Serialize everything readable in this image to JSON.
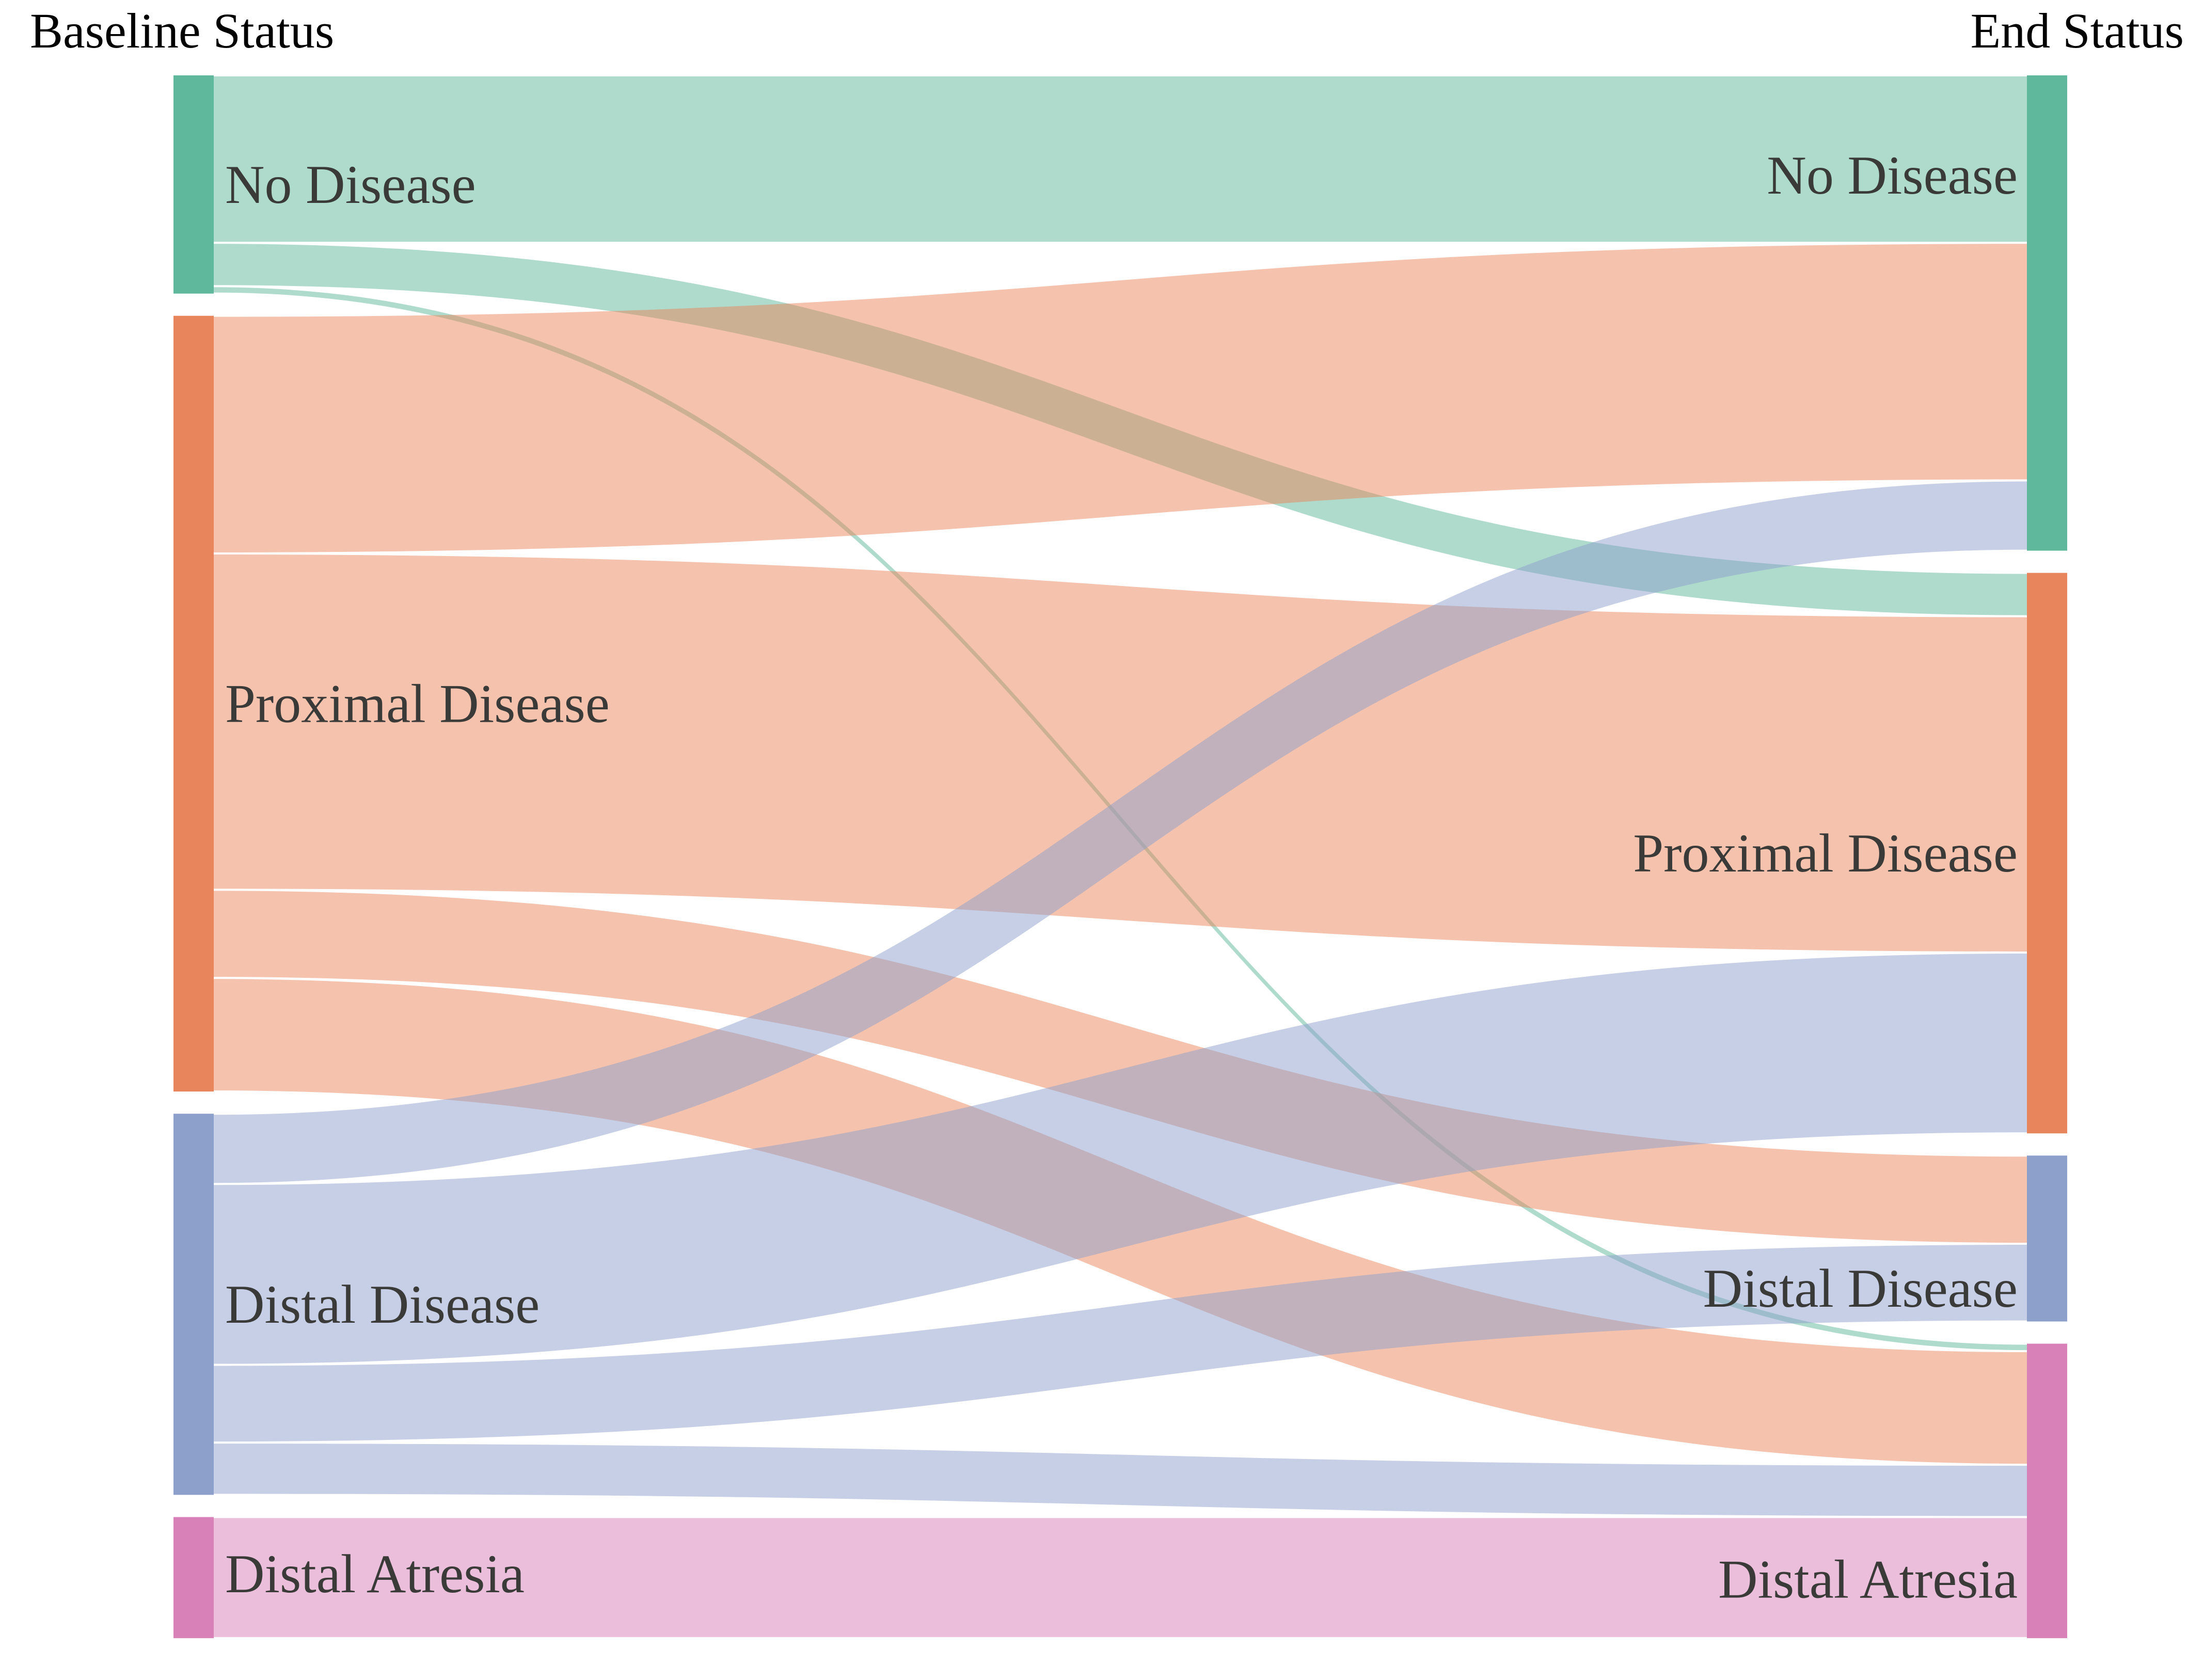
{
  "chart_data": {
    "type": "sankey",
    "columns": [
      {
        "id": "baseline",
        "title": "Baseline Status"
      },
      {
        "id": "end",
        "title": "End Status"
      }
    ],
    "nodes": [
      {
        "id": "no_disease",
        "label": "No Disease",
        "color": "#5fb89c"
      },
      {
        "id": "proximal_disease",
        "label": "Proximal Disease",
        "color": "#e9855c"
      },
      {
        "id": "distal_disease",
        "label": "Distal Disease",
        "color": "#8da0cc"
      },
      {
        "id": "distal_atresia",
        "label": "Distal Atresia",
        "color": "#d880b8"
      }
    ],
    "links": [
      {
        "source": "no_disease",
        "target": "no_disease",
        "value": 11.2
      },
      {
        "source": "no_disease",
        "target": "proximal_disease",
        "value": 2.9
      },
      {
        "source": "no_disease",
        "target": "distal_atresia",
        "value": 0.5
      },
      {
        "source": "proximal_disease",
        "target": "no_disease",
        "value": 15.9
      },
      {
        "source": "proximal_disease",
        "target": "proximal_disease",
        "value": 22.5
      },
      {
        "source": "proximal_disease",
        "target": "distal_disease",
        "value": 5.9
      },
      {
        "source": "proximal_disease",
        "target": "distal_atresia",
        "value": 7.6
      },
      {
        "source": "distal_disease",
        "target": "no_disease",
        "value": 4.7
      },
      {
        "source": "distal_disease",
        "target": "proximal_disease",
        "value": 12.1
      },
      {
        "source": "distal_disease",
        "target": "distal_disease",
        "value": 5.2
      },
      {
        "source": "distal_disease",
        "target": "distal_atresia",
        "value": 3.5
      },
      {
        "source": "distal_atresia",
        "target": "distal_atresia",
        "value": 8.1
      }
    ],
    "value_units": "percent of cohort (estimated from band thickness)",
    "legend": "none",
    "layout_hints": {
      "flow_opacity": 0.5,
      "background": "#ffffff",
      "label_color": "#3a3a38",
      "title_color": "#000000",
      "grid": "off"
    }
  }
}
